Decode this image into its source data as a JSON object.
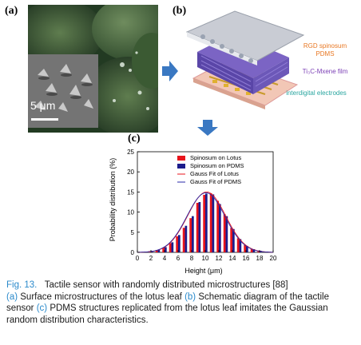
{
  "panels": {
    "a_label": "(a)",
    "b_label": "(b)",
    "c_label": "(c)",
    "scale_bar_text": "5 μm"
  },
  "schematic": {
    "top_label_line1": "RGD spinosum",
    "top_label_line2": "PDMS",
    "mid_label": "Ti₃C-Mxene film",
    "bottom_label": "interdigital electrodes",
    "colors": {
      "top_label": "#e87722",
      "mid_label": "#7b3fb5",
      "bottom_label": "#2aa6a0"
    }
  },
  "chart_data": {
    "type": "bar",
    "categories": [
      1,
      2,
      3,
      4,
      5,
      6,
      7,
      8,
      9,
      10,
      11,
      12,
      13,
      14,
      15,
      16,
      17,
      18,
      19
    ],
    "series": [
      {
        "name": "Spinosum on Lotus",
        "color": "#e8141c",
        "values": [
          0.1,
          0.3,
          0.6,
          1.2,
          2.3,
          4.0,
          6.1,
          8.5,
          12.3,
          14.3,
          14.7,
          12.8,
          9.5,
          6.1,
          3.5,
          1.8,
          0.8,
          0.4,
          0.2
        ]
      },
      {
        "name": "Spinosum on PDMS",
        "color": "#1c1c8c",
        "values": [
          0.1,
          0.3,
          0.7,
          1.3,
          2.5,
          4.3,
          6.6,
          9.0,
          12.5,
          14.6,
          14.4,
          12.0,
          9.0,
          5.8,
          3.3,
          1.6,
          0.8,
          0.4,
          0.2
        ]
      }
    ],
    "fits": [
      {
        "name": "Gauss Fit of Lotus",
        "color": "#e8141c",
        "mean": 10.2,
        "sigma": 2.8,
        "peak": 15.0
      },
      {
        "name": "Gauss Fit of PDMS",
        "color": "#2a2aa8",
        "mean": 10.1,
        "sigma": 2.8,
        "peak": 14.8
      }
    ],
    "xlabel": "Height (μm)",
    "ylabel": "Probability distribution (%)",
    "xlim": [
      0,
      20
    ],
    "ylim": [
      0,
      25
    ],
    "xticks": [
      0,
      2,
      4,
      6,
      8,
      10,
      12,
      14,
      16,
      18,
      20
    ],
    "yticks": [
      0,
      5,
      10,
      15,
      20,
      25
    ],
    "legend_position": "top-center",
    "grid": false
  },
  "caption": {
    "head": "Fig. 13.",
    "title": "   Tactile sensor with randomly distributed microstructures [88]",
    "a_ref": "(a)",
    "a_text": " Surface microstructures of the lotus leaf ",
    "b_ref": "(b)",
    "b_text": " Schematic diagram of the tactile sensor ",
    "c_ref": "(c)",
    "c_text": " PDMS structures replicated from the lotus leaf imitates the Gaussian random distribution characteristics."
  }
}
